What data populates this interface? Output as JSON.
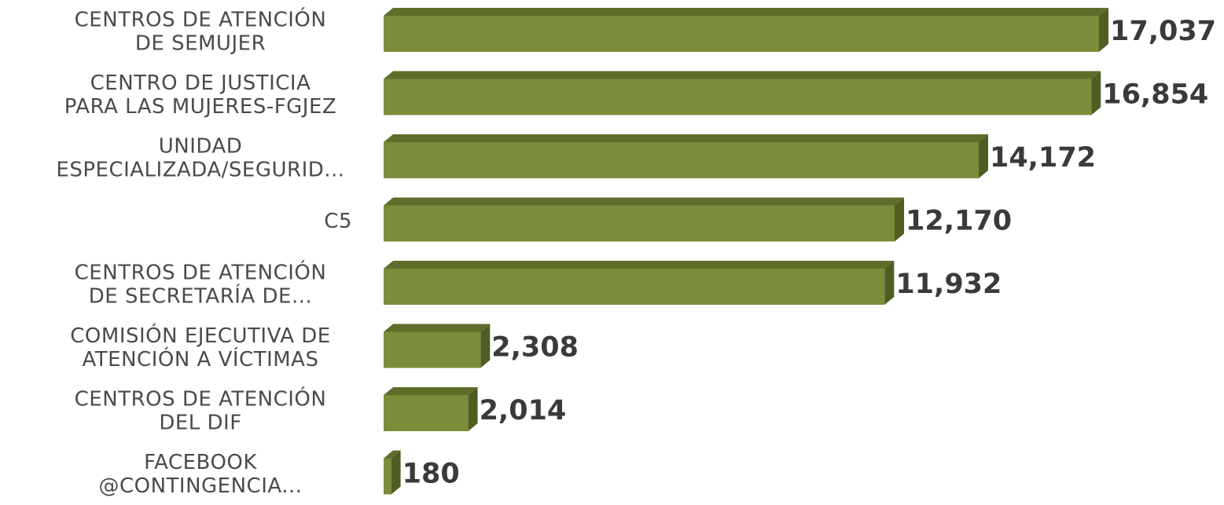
{
  "chart_data": {
    "type": "bar",
    "orientation": "horizontal",
    "style": "3d",
    "categories": [
      [
        "CENTROS DE ATENCIÓN",
        "DE SEMUJER"
      ],
      [
        "CENTRO DE JUSTICIA",
        "PARA LAS MUJERES-FGJEZ"
      ],
      [
        "UNIDAD",
        "ESPECIALIZADA/SEGURID..."
      ],
      [
        "C5"
      ],
      [
        "CENTROS DE ATENCIÓN",
        "DE SECRETARÍA  DE..."
      ],
      [
        "COMISIÓN EJECUTIVA DE",
        "ATENCIÓN A VÍCTIMAS"
      ],
      [
        "CENTROS DE ATENCIÓN",
        "DEL DIF"
      ],
      [
        "FACEBOOK",
        "@CONTINGENCIA..."
      ]
    ],
    "values": [
      17037,
      16854,
      14172,
      12170,
      11932,
      2308,
      2014,
      180
    ],
    "value_labels": [
      "17,037",
      "16,854",
      "14,172",
      "12,170",
      "11,932",
      "2,308",
      "2,014",
      "180"
    ],
    "xlim": [
      0,
      17037
    ],
    "grid": false,
    "legend": "none",
    "colors": {
      "bar_front": "#7b8c3a",
      "bar_top": "#5e6e2a",
      "bar_side": "#4f5d22",
      "category_text": "#4a4a4a",
      "value_text": "#3a3a3a"
    }
  }
}
